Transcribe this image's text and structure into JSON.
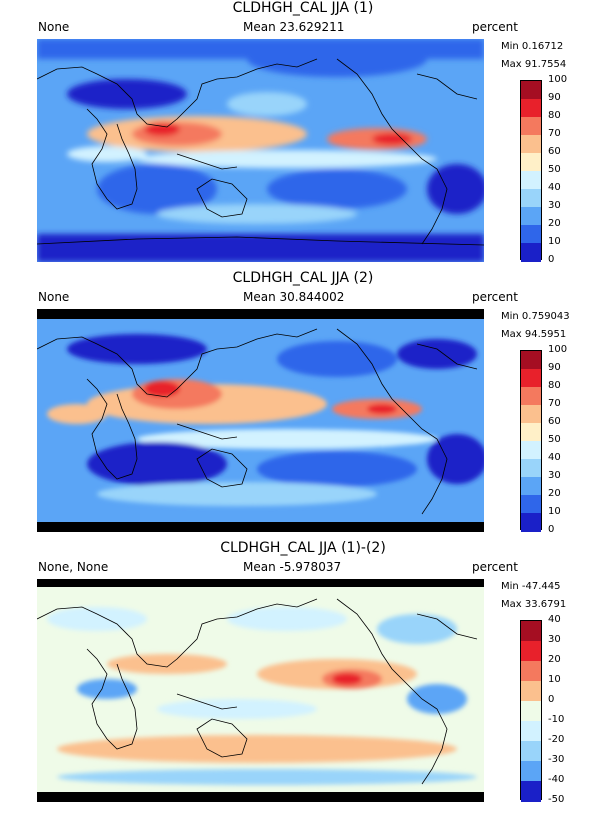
{
  "panels": [
    {
      "title": "CLDHGH_CAL JJA (1)",
      "label": "None",
      "mean": "Mean 23.629211",
      "units": "percent",
      "min": "Min 0.16712",
      "max": "Max 91.7554",
      "ticks": [
        "100",
        "90",
        "80",
        "70",
        "60",
        "50",
        "40",
        "30",
        "20",
        "10",
        "0"
      ],
      "colors": [
        "#a50e22",
        "#e8212b",
        "#f4795e",
        "#fbc08e",
        "#fff0c8",
        "#d2f2ff",
        "#99d4fa",
        "#5ba5f6",
        "#2f66ea",
        "#1a20c8"
      ]
    },
    {
      "title": "CLDHGH_CAL JJA (2)",
      "label": "None",
      "mean": "Mean 30.844002",
      "units": "percent",
      "min": "Min 0.759043",
      "max": "Max 94.5951",
      "ticks": [
        "100",
        "90",
        "80",
        "70",
        "60",
        "50",
        "40",
        "30",
        "20",
        "10",
        "0"
      ],
      "colors": [
        "#a50e22",
        "#e8212b",
        "#f4795e",
        "#fbc08e",
        "#fff0c8",
        "#d2f2ff",
        "#99d4fa",
        "#5ba5f6",
        "#2f66ea",
        "#1a20c8"
      ]
    },
    {
      "title": "CLDHGH_CAL JJA (1)-(2)",
      "label": "None, None",
      "mean": "Mean -5.978037",
      "units": "percent",
      "min": "Min -47.445",
      "max": "Max 33.6791",
      "ticks": [
        "40",
        "30",
        "20",
        "10",
        "0",
        "-10",
        "-20",
        "-30",
        "-40",
        "-50"
      ],
      "colors": [
        "#a50e22",
        "#e8212b",
        "#f4795e",
        "#fbc08e",
        "#effbe8",
        "#d2f2ff",
        "#99d4fa",
        "#5ba5f6",
        "#1a20c8"
      ]
    }
  ]
}
